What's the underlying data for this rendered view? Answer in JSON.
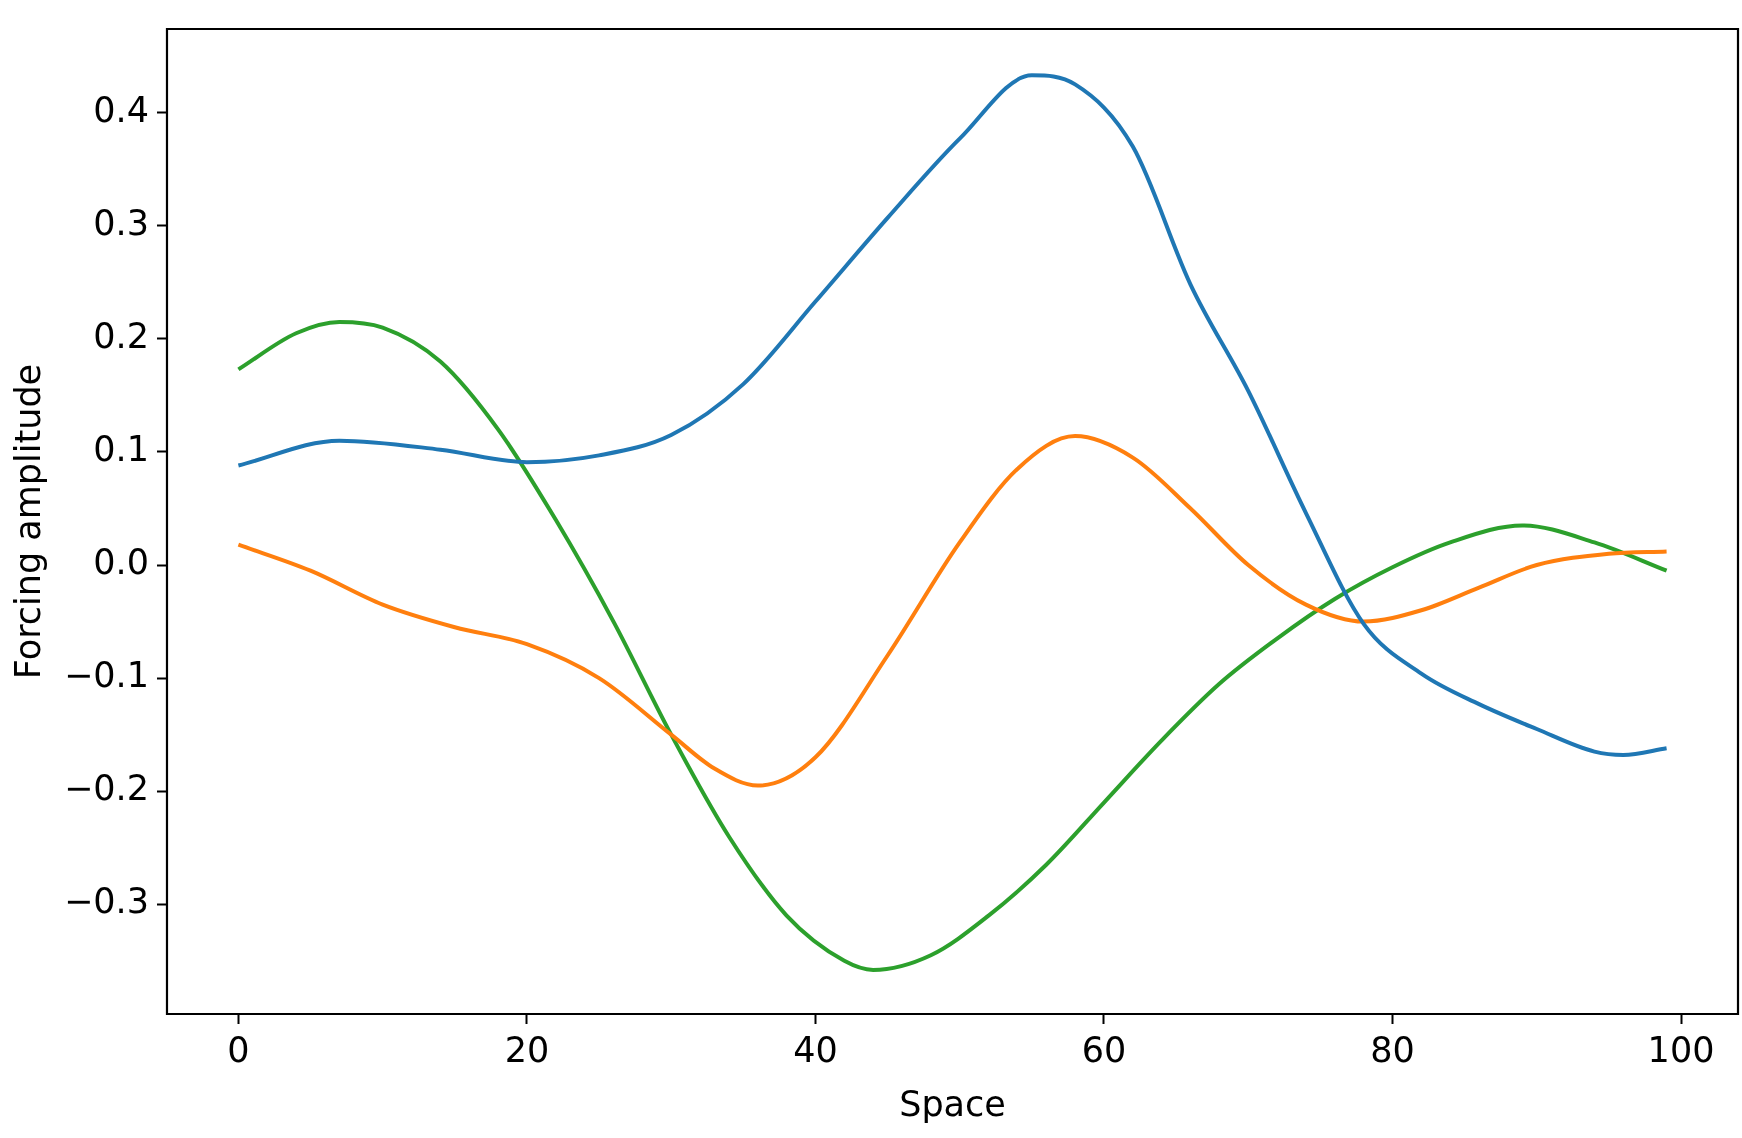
{
  "chart_data": {
    "type": "line",
    "xlabel": "Space",
    "ylabel": "Forcing amplitude",
    "xlim": [
      -4.95,
      103.95
    ],
    "ylim": [
      -0.397,
      0.474
    ],
    "xticks": [
      0,
      20,
      40,
      60,
      80,
      100
    ],
    "yticks": [
      {
        "value": -0.3,
        "label": "−0.3"
      },
      {
        "value": -0.2,
        "label": "−0.2"
      },
      {
        "value": -0.1,
        "label": "−0.1"
      },
      {
        "value": 0,
        "label": "0.0"
      },
      {
        "value": 0.1,
        "label": "0.1"
      },
      {
        "value": 0.2,
        "label": "0.2"
      },
      {
        "value": 0.3,
        "label": "0.3"
      },
      {
        "value": 0.4,
        "label": "0.4"
      }
    ],
    "grid": false,
    "legend": false,
    "marker": "none",
    "line_style": "solid",
    "series": [
      {
        "color": "#1f77b4",
        "x": [
          0,
          7,
          14,
          20,
          25,
          30,
          35,
          40,
          45,
          50,
          55,
          58,
          62,
          66,
          70,
          74,
          78,
          82,
          86,
          90,
          94,
          96,
          99
        ],
        "values": [
          0.088,
          0.11,
          0.102,
          0.091,
          0.097,
          0.115,
          0.16,
          0.233,
          0.307,
          0.377,
          0.433,
          0.425,
          0.37,
          0.248,
          0.154,
          0.046,
          -0.052,
          -0.096,
          -0.123,
          -0.145,
          -0.165,
          -0.168,
          -0.162
        ]
      },
      {
        "color": "#ff7f0e",
        "x": [
          0,
          5,
          10,
          15,
          20,
          25,
          30,
          33,
          36,
          40,
          45,
          50,
          54,
          58,
          62,
          66,
          70,
          74,
          78,
          82,
          86,
          90,
          95,
          99
        ],
        "values": [
          0.018,
          -0.005,
          -0.035,
          -0.055,
          -0.07,
          -0.1,
          -0.15,
          -0.18,
          -0.195,
          -0.17,
          -0.08,
          0.02,
          0.085,
          0.114,
          0.095,
          0.05,
          0.0,
          -0.035,
          -0.05,
          -0.04,
          -0.02,
          0.0,
          0.01,
          0.012
        ]
      },
      {
        "color": "#2ca02c",
        "x": [
          0,
          4,
          7,
          10,
          14,
          18,
          22,
          26,
          30,
          34,
          38,
          42,
          44,
          48,
          52,
          56,
          60,
          64,
          68,
          72,
          76,
          80,
          84,
          89,
          94,
          99
        ],
        "values": [
          0.173,
          0.205,
          0.215,
          0.21,
          0.18,
          0.12,
          0.04,
          -0.05,
          -0.15,
          -0.24,
          -0.31,
          -0.35,
          -0.358,
          -0.345,
          -0.31,
          -0.265,
          -0.21,
          -0.155,
          -0.105,
          -0.065,
          -0.03,
          -0.002,
          0.02,
          0.035,
          0.02,
          -0.005
        ]
      }
    ]
  }
}
